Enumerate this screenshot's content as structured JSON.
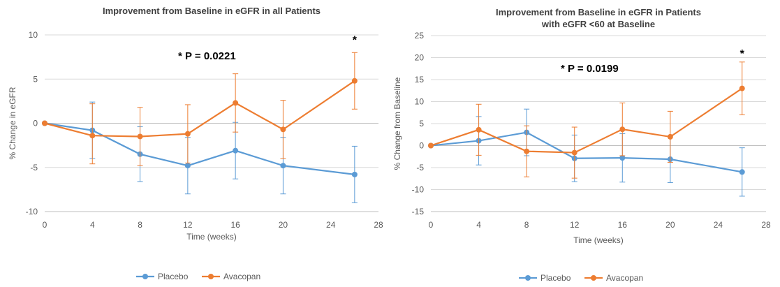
{
  "colors": {
    "placebo": "#5B9BD5",
    "avacopan": "#ED7D31",
    "grid": "#D9D9D9",
    "axis": "#BFBFBF"
  },
  "chart_data": [
    {
      "type": "line",
      "title": [
        "Improvement from Baseline in eGFR in all Patients"
      ],
      "xlabel": "Time (weeks)",
      "ylabel": "% Change in eGFR",
      "xlim": [
        0,
        28
      ],
      "ylim": [
        -10,
        10
      ],
      "xticks": [
        "0",
        "4",
        "8",
        "12",
        "16",
        "20",
        "24",
        "28"
      ],
      "yticks": [
        "10",
        "5",
        "0",
        "-5",
        "-10"
      ],
      "x": [
        0,
        4,
        8,
        12,
        16,
        20,
        26
      ],
      "grid": true,
      "legend": "bottom",
      "series": [
        {
          "name": "Placebo",
          "color": "#5B9BD5",
          "values": [
            0,
            -0.8,
            -3.5,
            -4.8,
            -3.1,
            -4.8,
            -5.8
          ],
          "err_low": [
            0,
            3.2,
            3.1,
            3.2,
            3.2,
            3.2,
            3.2
          ],
          "err_high": [
            0,
            3.2,
            3.1,
            3.2,
            3.2,
            3.2,
            3.2
          ]
        },
        {
          "name": "Avacopan",
          "color": "#ED7D31",
          "values": [
            0,
            -1.4,
            -1.5,
            -1.2,
            2.3,
            -0.7,
            4.8
          ],
          "err_low": [
            0,
            3.2,
            3.3,
            3.3,
            3.3,
            3.3,
            3.2
          ],
          "err_high": [
            0,
            3.6,
            3.3,
            3.3,
            3.3,
            3.3,
            3.2
          ]
        }
      ],
      "annotation": "* P = 0.0221",
      "star": "*",
      "star_x": 26,
      "star_y": 9.5
    },
    {
      "type": "line",
      "title": [
        "Improvement from Baseline in eGFR in Patients",
        "with eGFR <60 at Baseline"
      ],
      "xlabel": "Time (weeks)",
      "ylabel": "% Change from Baseline",
      "xlim": [
        0,
        28
      ],
      "ylim": [
        -15,
        25
      ],
      "xticks": [
        "0",
        "4",
        "8",
        "12",
        "16",
        "20",
        "24",
        "28"
      ],
      "yticks": [
        "25",
        "20",
        "15",
        "10",
        "5",
        "0",
        "-5",
        "-10",
        "-15"
      ],
      "x": [
        0,
        4,
        8,
        12,
        16,
        20,
        26
      ],
      "grid": true,
      "legend": "bottom",
      "series": [
        {
          "name": "Placebo",
          "color": "#5B9BD5",
          "values": [
            0,
            1.1,
            3.0,
            -2.9,
            -2.8,
            -3.1,
            -6.0
          ],
          "err_low": [
            0,
            5.5,
            5.3,
            5.3,
            5.5,
            5.3,
            5.5
          ],
          "err_high": [
            0,
            5.5,
            5.3,
            5.3,
            5.5,
            5.3,
            5.5
          ]
        },
        {
          "name": "Avacopan",
          "color": "#ED7D31",
          "values": [
            0,
            3.6,
            -1.3,
            -1.6,
            3.7,
            2.0,
            13.0
          ],
          "err_low": [
            0,
            5.8,
            5.8,
            5.8,
            6.0,
            5.8,
            6.0
          ],
          "err_high": [
            0,
            5.8,
            5.8,
            5.8,
            6.0,
            5.8,
            6.0
          ]
        }
      ],
      "annotation": "* P = 0.0199",
      "star": "*",
      "star_x": 26,
      "star_y": 21
    }
  ]
}
